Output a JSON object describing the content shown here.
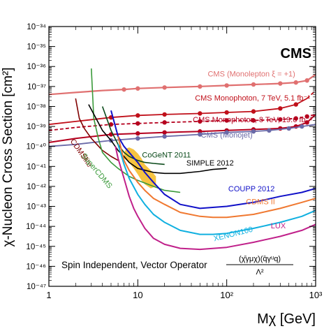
{
  "chart_data": {
    "type": "line",
    "title": "",
    "badge": "CMS",
    "xlabel": "Mχ [GeV]",
    "ylabel": "χ-Nucleon Cross Section [cm²]",
    "xlim": [
      1,
      1000
    ],
    "ylim": [
      -47,
      -34
    ],
    "x_scale": "log",
    "y_scale": "log",
    "x_ticks": [
      {
        "value": 1,
        "label": "1"
      },
      {
        "value": 10,
        "label": "10"
      },
      {
        "value": 100,
        "label": "10²"
      },
      {
        "value": 1000,
        "label": "10³"
      }
    ],
    "y_ticks": [
      {
        "value": -34,
        "label": "10⁻³⁴"
      },
      {
        "value": -35,
        "label": "10⁻³⁵"
      },
      {
        "value": -36,
        "label": "10⁻³⁶"
      },
      {
        "value": -37,
        "label": "10⁻³⁷"
      },
      {
        "value": -38,
        "label": "10⁻³⁸"
      },
      {
        "value": -39,
        "label": "10⁻³⁹"
      },
      {
        "value": -40,
        "label": "10⁻⁴⁰"
      },
      {
        "value": -41,
        "label": "10⁻⁴¹"
      },
      {
        "value": -42,
        "label": "10⁻⁴²"
      },
      {
        "value": -43,
        "label": "10⁻⁴³"
      },
      {
        "value": -44,
        "label": "10⁻⁴⁴"
      },
      {
        "value": -45,
        "label": "10⁻⁴⁵"
      },
      {
        "value": -46,
        "label": "10⁻⁴⁶"
      },
      {
        "value": -47,
        "label": "10⁻⁴⁷"
      }
    ],
    "grid": false,
    "footnote": {
      "text": "Spin Independent, Vector Operator",
      "numerator": "(χ̄γμχ)(q̄γᵘq)",
      "denominator": "Λ²"
    },
    "series": [
      {
        "name": "CMS (Monolepton ξ = +1)",
        "color": "#e07070",
        "width": 2.2,
        "dash": "",
        "markers": true,
        "x": [
          1,
          2,
          4,
          7,
          10,
          20,
          50,
          100,
          200,
          400,
          600,
          800,
          1000
        ],
        "y": [
          -37.4,
          -37.3,
          -37.2,
          -37.15,
          -37.1,
          -37.05,
          -37.0,
          -36.95,
          -36.9,
          -36.85,
          -36.8,
          -36.7,
          -36.4
        ],
        "label_x": 190,
        "label_y": -36.5
      },
      {
        "name": "CMS Monophoton, 7 TeV, 5.1 fb⁻¹",
        "color": "#c0101a",
        "width": 1.8,
        "dash": "",
        "markers": true,
        "x": [
          1,
          2,
          5,
          10,
          20,
          50,
          100,
          200,
          400,
          600,
          800
        ],
        "y": [
          -38.9,
          -38.75,
          -38.55,
          -38.45,
          -38.4,
          -38.35,
          -38.3,
          -38.25,
          -38.1,
          -37.9,
          -37.6
        ],
        "extension": {
          "x": [
            800,
            1000
          ],
          "y": [
            -37.6,
            -37.2
          ]
        },
        "label_x": 195,
        "label_y": -37.7
      },
      {
        "name": "CMS Monophoton, 8 TeV, 19.6 fb⁻¹",
        "color": "#b5001e",
        "width": 1.8,
        "dash": "5,3",
        "markers": true,
        "x": [
          1,
          2,
          5,
          10,
          20,
          50,
          100,
          200,
          400,
          600,
          800,
          1000
        ],
        "y": [
          -39.2,
          -39.05,
          -38.9,
          -38.85,
          -38.8,
          -38.75,
          -38.7,
          -38.7,
          -38.65,
          -38.6,
          -38.5,
          -38.4
        ],
        "label_x": 195,
        "label_y": -38.78
      },
      {
        "name": "CMS Monophoton, 8 TeV, 19.6 fb⁻¹ (solid)",
        "color": "#b5001e",
        "width": 2,
        "dash": "",
        "markers": true,
        "x": [
          1,
          2,
          5,
          10,
          20,
          50,
          100,
          200,
          400,
          600,
          800,
          1000
        ],
        "y": [
          -39.8,
          -39.6,
          -39.4,
          -39.35,
          -39.3,
          -39.25,
          -39.2,
          -39.15,
          -39.1,
          -39.0,
          -38.8,
          -38.4
        ]
      },
      {
        "name": "CMS (Monojet)",
        "color": "#6a6aa8",
        "width": 1.8,
        "dash": "",
        "markers": true,
        "x": [
          1,
          2,
          5,
          10,
          20,
          50,
          100,
          200,
          300,
          500,
          700,
          1000
        ],
        "y": [
          -40.0,
          -39.9,
          -39.7,
          -39.6,
          -39.5,
          -39.4,
          -39.3,
          -39.25,
          -39.2,
          -39.1,
          -39.0,
          -38.9
        ],
        "label_x": 100,
        "label_y": -39.55
      },
      {
        "name": "CDMSlite",
        "color": "#800000",
        "width": 1.6,
        "dash": "",
        "markers": false,
        "x": [
          2.0,
          2.2,
          2.5,
          3,
          4,
          5,
          6
        ],
        "y": [
          -37.6,
          -38.6,
          -39.1,
          -39.6,
          -40.2,
          -40.5,
          -40.7
        ],
        "label_x": 2.2,
        "label_y": -40.4,
        "label_rotate": 55
      },
      {
        "name": "SuperCDMS",
        "color": "#3a9a3a",
        "width": 1.6,
        "dash": "",
        "markers": false,
        "x": [
          3.0,
          3.2,
          3.6,
          4,
          5,
          6,
          8,
          10,
          15,
          20,
          30
        ],
        "y": [
          -36.1,
          -38.6,
          -39.6,
          -40.3,
          -40.8,
          -41.1,
          -41.5,
          -41.7,
          -42.0,
          -42.2,
          -42.3
        ],
        "label_x": 3.3,
        "label_y": -41.3,
        "label_rotate": 50
      },
      {
        "name": "CoGeNT 2011",
        "color": "#0a4a1a",
        "width": 1.6,
        "dash": "",
        "markers": false,
        "x": [
          4,
          5,
          6,
          7,
          8,
          10,
          12,
          15,
          20
        ],
        "y": [
          -38.0,
          -39.2,
          -39.9,
          -40.3,
          -40.5,
          -40.7,
          -40.8,
          -40.85,
          -40.9
        ],
        "label_x": 21,
        "label_y": -40.55
      },
      {
        "name": "SIMPLE 2012",
        "color": "#000000",
        "width": 1.6,
        "dash": "",
        "markers": false,
        "x": [
          2.8,
          4,
          5,
          6,
          7,
          8,
          10,
          15,
          20,
          30,
          50,
          70,
          100
        ],
        "y": [
          -37.9,
          -39.2,
          -39.7,
          -40.2,
          -40.5,
          -40.8,
          -41.1,
          -41.3,
          -41.35,
          -41.35,
          -41.25,
          -41.15,
          -41.1
        ],
        "label_x": 65,
        "label_y": -40.95
      },
      {
        "name": "COUPP 2012",
        "color": "#1010c8",
        "width": 2,
        "dash": "",
        "markers": false,
        "x": [
          5,
          6,
          7,
          8,
          10,
          12,
          15,
          20,
          30,
          50,
          100,
          200,
          400,
          700,
          1000
        ],
        "y": [
          -38.2,
          -39.5,
          -40.0,
          -40.3,
          -40.8,
          -41.3,
          -41.8,
          -42.4,
          -42.9,
          -43.1,
          -43.0,
          -42.8,
          -42.5,
          -42.3,
          -42.1
        ],
        "label_x": 190,
        "label_y": -42.25
      },
      {
        "name": "CDMS II",
        "color": "#f07830",
        "width": 2,
        "dash": "",
        "markers": false,
        "x": [
          6,
          7,
          8,
          10,
          12,
          15,
          20,
          30,
          50,
          70,
          100,
          200,
          400,
          700,
          1000
        ],
        "y": [
          -39.5,
          -40.7,
          -41.2,
          -41.8,
          -42.2,
          -42.6,
          -42.9,
          -43.3,
          -43.5,
          -43.55,
          -43.55,
          -43.4,
          -43.1,
          -42.8,
          -42.6
        ],
        "label_x": 240,
        "label_y": -42.9
      },
      {
        "name": "XENON100",
        "color": "#10b0e0",
        "width": 2,
        "dash": "",
        "markers": false,
        "x": [
          6,
          7,
          8,
          10,
          12,
          15,
          20,
          30,
          50,
          70,
          100,
          200,
          400,
          700,
          1000
        ],
        "y": [
          -39.9,
          -40.9,
          -41.6,
          -42.4,
          -42.9,
          -43.4,
          -43.8,
          -44.2,
          -44.4,
          -44.4,
          -44.35,
          -44.1,
          -43.8,
          -43.5,
          -43.2
        ],
        "label_x": 120,
        "label_y": -44.5,
        "label_rotate": -14
      },
      {
        "name": "LUX",
        "color": "#c0208a",
        "width": 2,
        "dash": "",
        "markers": false,
        "x": [
          5.6,
          6,
          7,
          8,
          9,
          10,
          12,
          15,
          20,
          30,
          50,
          100,
          200,
          400,
          700,
          1000
        ],
        "y": [
          -40.0,
          -40.6,
          -41.6,
          -42.5,
          -43.1,
          -43.5,
          -44.1,
          -44.6,
          -44.9,
          -45.1,
          -45.15,
          -45.05,
          -44.8,
          -44.5,
          -44.2,
          -43.9
        ],
        "label_x": 380,
        "label_y": -44.1
      }
    ],
    "signal_region": {
      "color": "#f5b820",
      "x": [
        7.0,
        7.5,
        8.0,
        9.0,
        10.0,
        11.0,
        12.0,
        14.0,
        16.0,
        16.0,
        14.0,
        12.0,
        11.0,
        10.0,
        9.0,
        8.0,
        7.0
      ],
      "y": [
        -40.3,
        -40.1,
        -40.05,
        -40.15,
        -40.35,
        -40.6,
        -40.9,
        -41.2,
        -41.5,
        -42.0,
        -42.1,
        -41.9,
        -41.7,
        -41.4,
        -41.1,
        -40.8,
        -40.6
      ]
    }
  }
}
